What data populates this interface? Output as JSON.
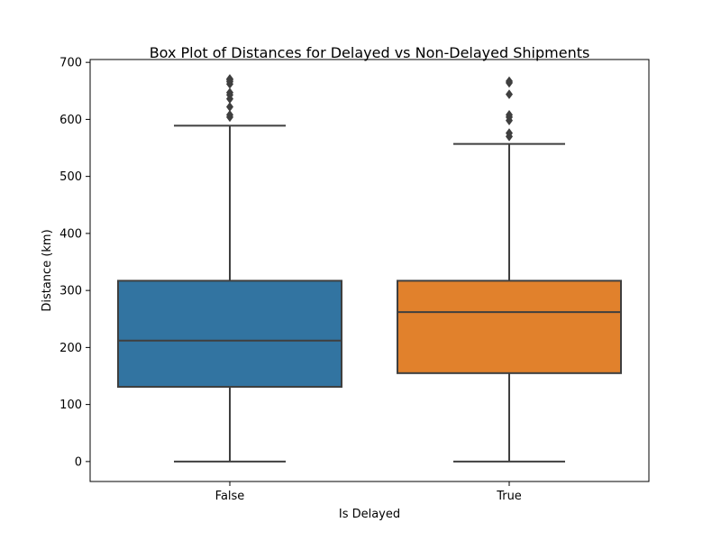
{
  "chart_data": {
    "type": "box",
    "title": "Box Plot of Distances for Delayed vs Non-Delayed Shipments",
    "xlabel": "Is Delayed",
    "ylabel": "Distance (km)",
    "ylim": [
      -35,
      705
    ],
    "yticks": [
      0,
      100,
      200,
      300,
      400,
      500,
      600,
      700
    ],
    "grid": false,
    "categories": [
      "False",
      "True"
    ],
    "colors": [
      "#3274a1",
      "#e1812c"
    ],
    "boxes": [
      {
        "category": "False",
        "whisker_low": 0,
        "q1": 131,
        "median": 212,
        "q3": 317,
        "whisker_high": 589,
        "outliers": [
          604,
          608,
          622,
          636,
          643,
          647,
          662,
          666,
          669,
          671
        ]
      },
      {
        "category": "True",
        "whisker_low": 0,
        "q1": 155,
        "median": 262,
        "q3": 317,
        "whisker_high": 557,
        "outliers": [
          570,
          576,
          598,
          604,
          608,
          644,
          664,
          667
        ]
      }
    ]
  }
}
